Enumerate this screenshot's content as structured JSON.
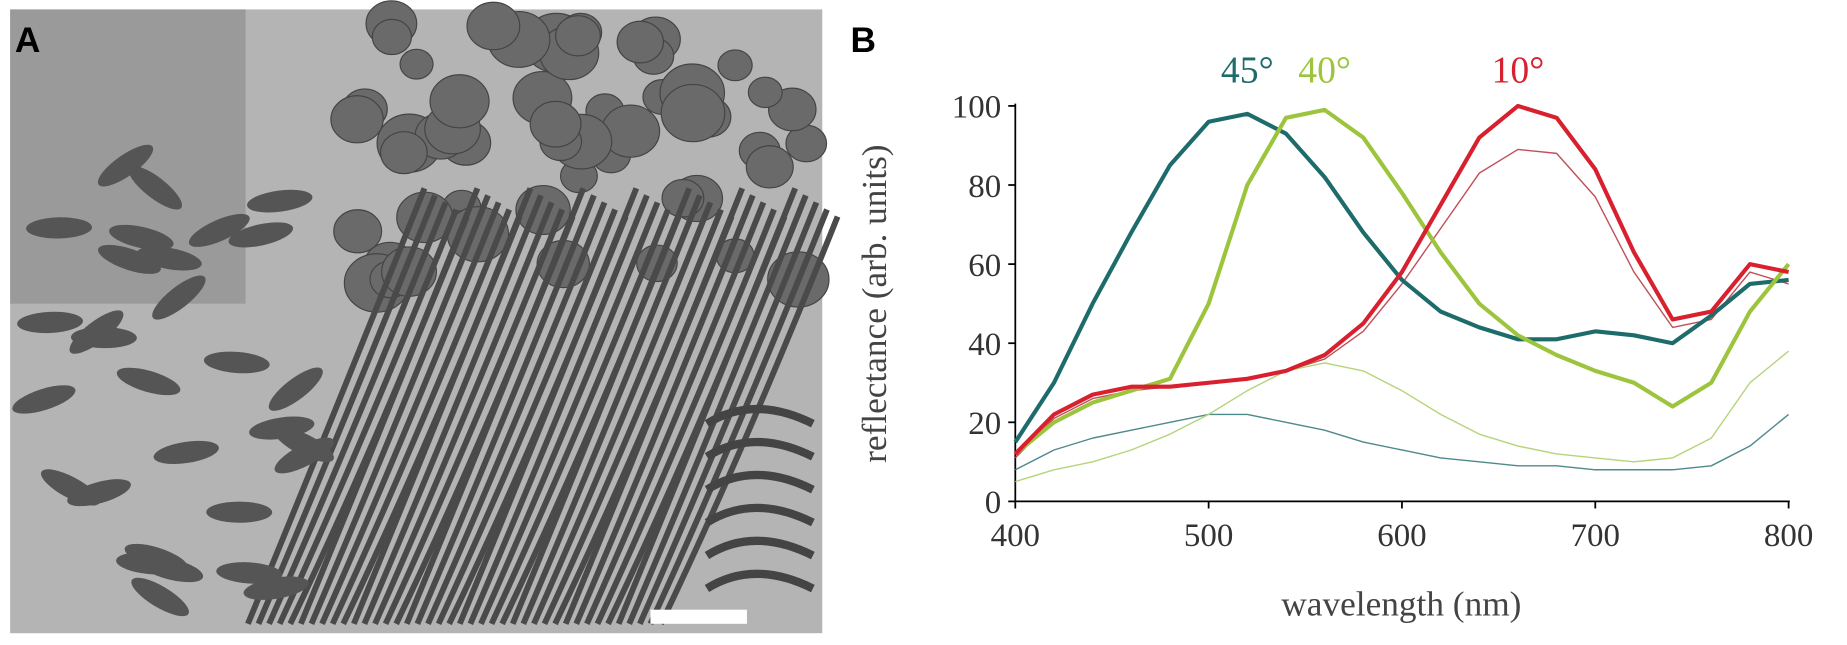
{
  "panel_labels": [
    "A",
    "B"
  ],
  "chart_data": {
    "type": "line",
    "xlabel": "wavelength (nm)",
    "ylabel": "reflectance (arb. units)",
    "x": [
      400,
      420,
      440,
      460,
      480,
      500,
      520,
      540,
      560,
      580,
      600,
      620,
      640,
      660,
      680,
      700,
      720,
      740,
      760,
      780,
      800
    ],
    "xlim": [
      400,
      800
    ],
    "xticks": [
      400,
      500,
      600,
      700,
      800
    ],
    "ylim": [
      0,
      100
    ],
    "yticks": [
      0,
      20,
      40,
      60,
      80,
      100
    ],
    "series": [
      {
        "color": "#4e8a8c",
        "line_width": 1.2,
        "values": [
          8,
          13,
          16,
          18,
          20,
          22,
          22,
          20,
          18,
          15,
          13,
          11,
          10,
          9,
          9,
          8,
          8,
          8,
          9,
          14,
          22
        ]
      },
      {
        "color": "#b5d47a",
        "line_width": 1.2,
        "values": [
          5,
          8,
          10,
          13,
          17,
          22,
          28,
          33,
          35,
          33,
          28,
          22,
          17,
          14,
          12,
          11,
          10,
          11,
          16,
          30,
          38
        ]
      },
      {
        "color": "#c0505a",
        "line_width": 1.2,
        "values": [
          11,
          21,
          26,
          28,
          29,
          30,
          31,
          33,
          36,
          43,
          55,
          69,
          83,
          89,
          88,
          77,
          58,
          44,
          46,
          58,
          55
        ]
      },
      {
        "name": "45°",
        "color": "#1d6b6b",
        "line_width": 3.5,
        "values": [
          15,
          30,
          50,
          68,
          85,
          96,
          98,
          93,
          82,
          68,
          56,
          48,
          44,
          41,
          41,
          43,
          42,
          40,
          47,
          55,
          56
        ]
      },
      {
        "name": "40°",
        "color": "#9cc43c",
        "line_width": 3.5,
        "values": [
          12,
          20,
          25,
          28,
          31,
          50,
          80,
          97,
          99,
          92,
          78,
          63,
          50,
          42,
          37,
          33,
          30,
          24,
          30,
          48,
          60
        ]
      },
      {
        "name": "10°",
        "color": "#d8202e",
        "line_width": 3.5,
        "values": [
          12,
          22,
          27,
          29,
          29,
          30,
          31,
          33,
          37,
          45,
          58,
          75,
          92,
          100,
          97,
          84,
          63,
          46,
          48,
          60,
          58
        ]
      }
    ]
  }
}
